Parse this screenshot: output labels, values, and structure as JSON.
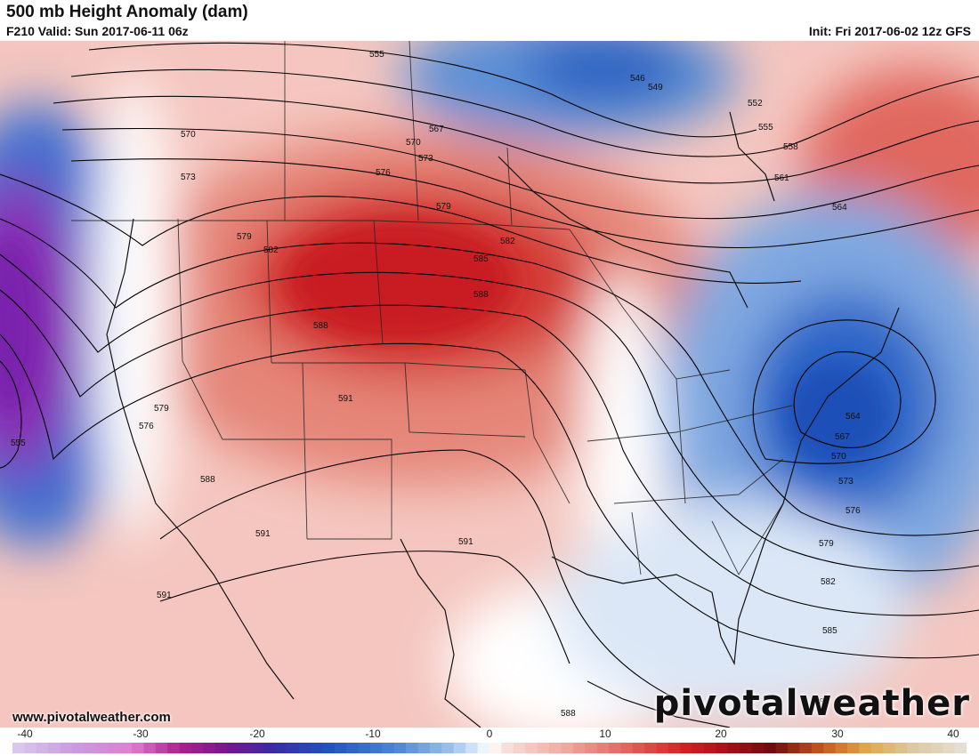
{
  "header": {
    "title": "500 mb Height Anomaly (dam)",
    "valid": "F210 Valid: Sun 2017-06-11 06z",
    "init": "Init: Fri 2017-06-02 12z GFS"
  },
  "footer": {
    "url": "www.pivotalweather.com",
    "brand": "pivotalweather"
  },
  "colorbar": {
    "min": -40,
    "max": 40,
    "tick_labels": [
      "-40",
      "-30",
      "-20",
      "-10",
      "0",
      "10",
      "20",
      "30",
      "40"
    ],
    "tick_values": [
      -40,
      -30,
      -20,
      -10,
      0,
      10,
      20,
      30,
      40
    ],
    "colors": {
      "strong_negative": "#8a1fb0",
      "negative": "#1e5fc4",
      "weak_negative": "#b9d3ee",
      "neutral": "#ffffff",
      "weak_positive": "#f2b8b0",
      "positive": "#e0514b",
      "strong_positive": "#c91a1e"
    }
  },
  "contour_labels": [
    "555",
    "546",
    "549",
    "552",
    "555",
    "558",
    "561",
    "564",
    "567",
    "570",
    "570",
    "573",
    "573",
    "576",
    "579",
    "579",
    "582",
    "582",
    "585",
    "588",
    "588",
    "591",
    "591",
    "591",
    "591",
    "579",
    "576",
    "555",
    "588",
    "564",
    "567",
    "570",
    "573",
    "576",
    "579",
    "582",
    "585",
    "588",
    "588"
  ],
  "highlights": {
    "ridge_center": "588",
    "trough_east": "564",
    "trough_west": "555"
  }
}
